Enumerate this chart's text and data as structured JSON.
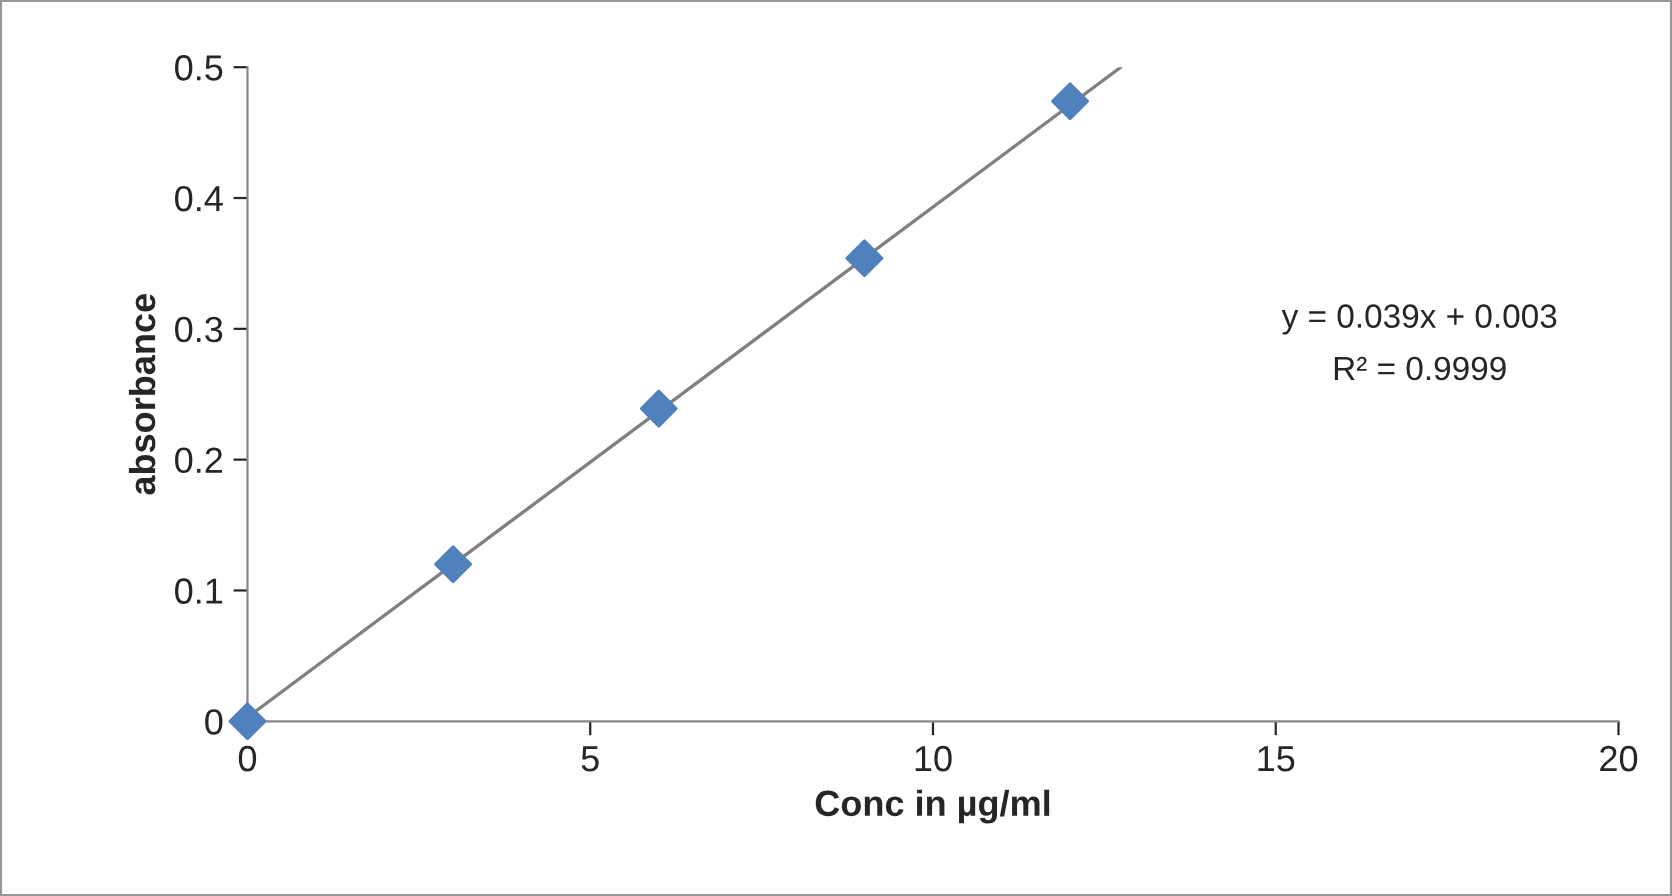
{
  "chart_data": {
    "type": "scatter",
    "xlabel": "Conc in µg/ml",
    "ylabel": "absorbance",
    "marker": "diamond",
    "grid": false,
    "legend": false,
    "xlim": [
      0,
      20
    ],
    "xticks": [
      0,
      5,
      10,
      15,
      20
    ],
    "ylim": [
      0,
      0.5
    ],
    "yticks": [
      0,
      0.1,
      0.2,
      0.3,
      0.4,
      0.5
    ],
    "series": [
      {
        "color": "#4f81bd",
        "x": [
          0,
          3,
          6,
          9,
          12
        ],
        "values": [
          0,
          0.12,
          0.239,
          0.354,
          0.474
        ]
      },
      {
        "type": "line",
        "color": "#808080",
        "marker": "none",
        "x": [
          0,
          12.74
        ],
        "values": [
          0.003,
          0.5
        ]
      }
    ],
    "annotations": [
      "y = 0.039x + 0.003",
      "R² = 0.9999"
    ]
  }
}
